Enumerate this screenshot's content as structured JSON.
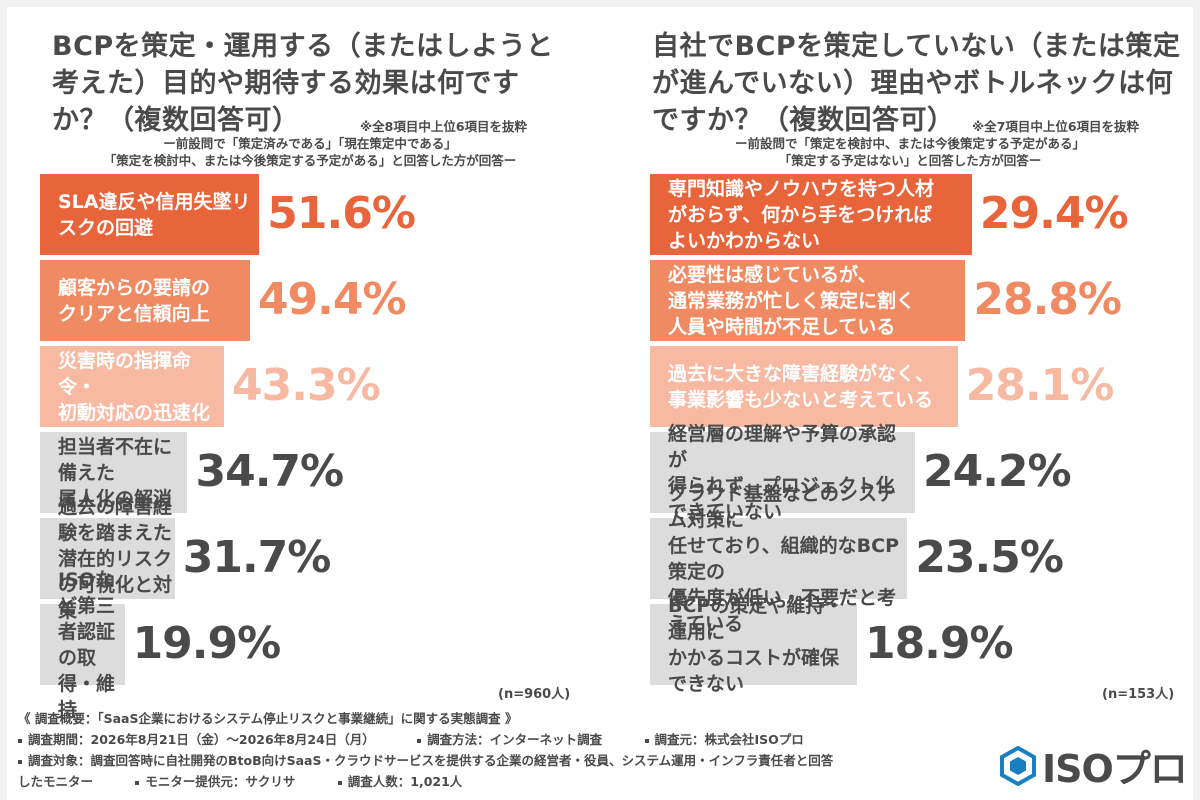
{
  "colors": {
    "bar_dark": "#e8643a",
    "bar_mid": "#f08a62",
    "bar_light": "#f7b9a2",
    "bar_gray": "#dcdcdc",
    "pct_dark": "#e8643a",
    "pct_mid": "#f08a62",
    "pct_light": "#f7b9a2",
    "pct_gray": "#4a4a4a",
    "label_gray": "#4a4a4a"
  },
  "left": {
    "title": "BCPを策定・運用する（またはしようと考えた）目的や期待する効果は何ですか？（複数回答可）",
    "note": "※全8項目中上位6項目を抜粋",
    "condition_line1": "ー前設問で「策定済みである」「現在策定中である」",
    "condition_line2": "「策定を検討中、または今後策定する予定がある」と回答した方が回答ー",
    "n_label": "(n=960人)"
  },
  "right": {
    "title": "自社でBCPを策定していない（または策定が進んでいない）理由やボトルネックは何ですか？（複数回答可）",
    "note": "※全7項目中上位6項目を抜粋",
    "condition_line1": "ー前設問で「策定を検討中、または今後策定する予定がある」",
    "condition_line2": "「策定する予定はない」と回答した方が回答ー",
    "n_label": "(n=153人)"
  },
  "chart_data": [
    {
      "type": "bar",
      "orientation": "horizontal",
      "title": "BCPを策定・運用する（またはしようと考えた）目的や期待する効果は何ですか？（複数回答可）",
      "unit": "%",
      "xlim": [
        0,
        100
      ],
      "categories": [
        "SLA違反や信用失墜リスクの回避",
        "顧客からの要請の\nクリアと信頼向上",
        "災害時の指揮命令・\n初動対応の迅速化",
        "担当者不在に備えた\n属人化の解消",
        "過去の障害経験を踏まえた\n潜在的リスクの可視化と対策",
        "ISOなど第三者認証\nの取得・維持"
      ],
      "values": [
        51.6,
        49.4,
        43.3,
        34.7,
        31.7,
        19.9
      ],
      "value_labels": [
        "51.6%",
        "49.4%",
        "43.3%",
        "34.7%",
        "31.7%",
        "19.9%"
      ],
      "bar_styles": [
        "dark",
        "mid",
        "light",
        "gray",
        "gray",
        "gray"
      ]
    },
    {
      "type": "bar",
      "orientation": "horizontal",
      "title": "自社でBCPを策定していない（または策定が進んでいない）理由やボトルネックは何ですか？（複数回答可）",
      "unit": "%",
      "xlim": [
        0,
        100
      ],
      "categories": [
        "専門知識やノウハウを持つ人材\nがおらず、何から手をつければ\nよいかわからない",
        "必要性は感じているが、\n通常業務が忙しく策定に割く\n人員や時間が不足している",
        "過去に大きな障害経験がなく、\n事業影響も少ないと考えている",
        "経営層の理解や予算の承認が\n得られず、プロジェクト化\nできていない",
        "クラウド基盤などのシステム対策に\n任せており、組織的なBCP策定の\n優先度が低い・不要だと考えている",
        "BCPの策定や維持・運用に\nかかるコストが確保できない"
      ],
      "values": [
        29.4,
        28.8,
        28.1,
        24.2,
        23.5,
        18.9
      ],
      "value_labels": [
        "29.4%",
        "28.8%",
        "28.1%",
        "24.2%",
        "23.5%",
        "18.9%"
      ],
      "bar_styles": [
        "dark",
        "mid",
        "light",
        "gray",
        "gray",
        "gray"
      ]
    }
  ],
  "footer": {
    "survey_title": "《 調査概要：「SaaS企業におけるシステム停止リスクと事業継続」に関する実態調査 》",
    "period": "調査期間：2026年8月21日（金）〜2026年8月24日（月）",
    "method": "調査方法：インターネット調査",
    "organizer": "調査元：株式会社ISOプロ",
    "target_line1": "調査対象：調査回答時に自社開発のBtoB向けSaaS・クラウドサービスを提供する企業の経営者・役員、システム運用・インフラ責任者と回答",
    "target_line2": "したモニター",
    "provider": "モニター提供元：サクリサ",
    "respondents": "調査人数：1,021人"
  },
  "logo": {
    "text": "ISOプロ",
    "icon": "hexagon-logo-icon",
    "color": "#1a7fc1"
  }
}
